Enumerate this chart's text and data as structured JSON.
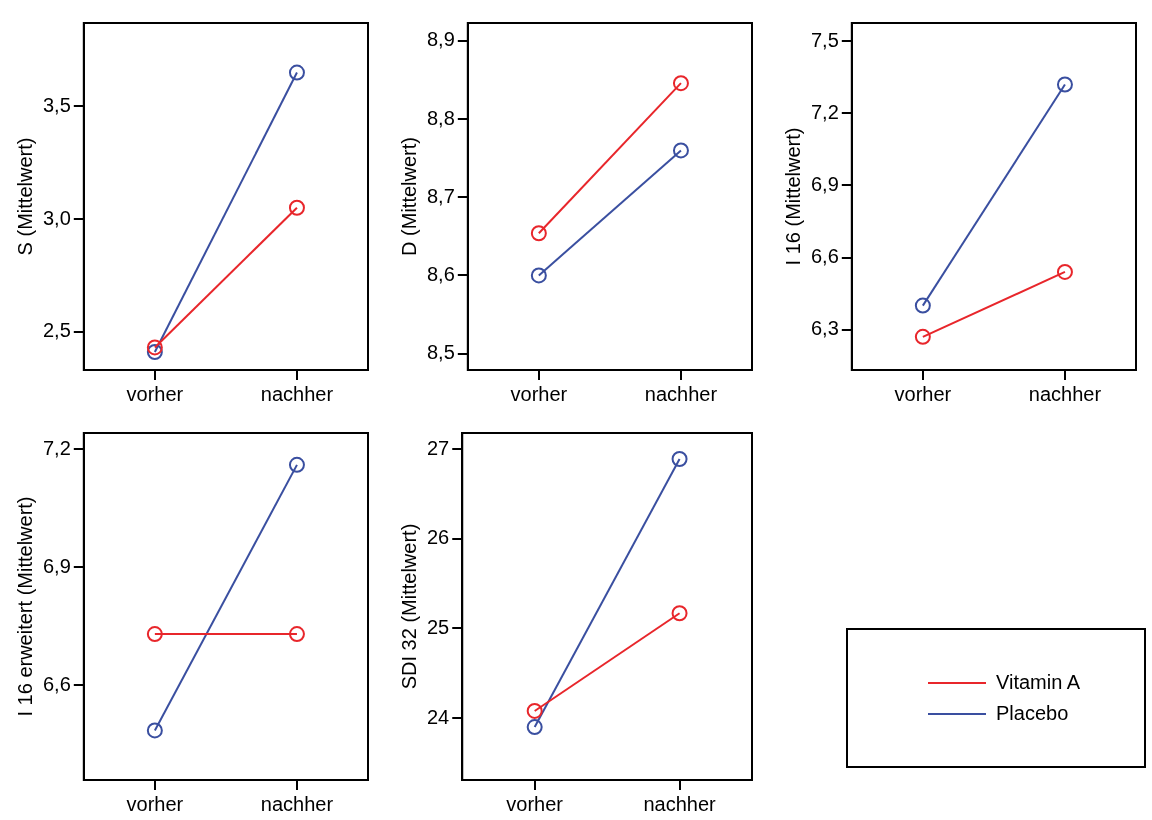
{
  "chart_data": [
    {
      "type": "line",
      "ylabel": "S (Mittelwert)",
      "categories": [
        "vorher",
        "nachher"
      ],
      "ylim": [
        2.33,
        3.87
      ],
      "yticks": [
        {
          "value": 2.5,
          "label": "2,5"
        },
        {
          "value": 3.0,
          "label": "3,0"
        },
        {
          "value": 3.5,
          "label": "3,5"
        }
      ],
      "grid": false,
      "marker": "circle",
      "legend": "bottom right",
      "series": [
        {
          "name": "Vitamin A",
          "color": "#e8262b",
          "values": [
            2.43,
            3.05
          ]
        },
        {
          "name": "Placebo",
          "color": "#3a4fa0",
          "values": [
            2.41,
            3.65
          ]
        }
      ]
    },
    {
      "type": "line",
      "ylabel": "D (Mittelwert)",
      "categories": [
        "vorher",
        "nachher"
      ],
      "ylim": [
        8.479,
        8.923
      ],
      "yticks": [
        {
          "value": 8.5,
          "label": "8,5"
        },
        {
          "value": 8.6,
          "label": "8,6"
        },
        {
          "value": 8.7,
          "label": "8,7"
        },
        {
          "value": 8.8,
          "label": "8,8"
        },
        {
          "value": 8.9,
          "label": "8,9"
        }
      ],
      "grid": false,
      "marker": "circle",
      "series": [
        {
          "color": "#e8262b",
          "values": [
            8.654,
            8.846
          ]
        },
        {
          "color": "#3a4fa0",
          "values": [
            8.6,
            8.76
          ]
        }
      ]
    },
    {
      "type": "line",
      "ylabel": "I 16 (Mittelwert)",
      "categories": [
        "vorher",
        "nachher"
      ],
      "ylim": [
        6.132,
        7.576
      ],
      "yticks": [
        {
          "value": 6.3,
          "label": "6,3"
        },
        {
          "value": 6.6,
          "label": "6,6"
        },
        {
          "value": 6.9,
          "label": "6,9"
        },
        {
          "value": 7.2,
          "label": "7,2"
        },
        {
          "value": 7.5,
          "label": "7,5"
        }
      ],
      "grid": false,
      "marker": "circle",
      "series": [
        {
          "color": "#e8262b",
          "values": [
            6.27,
            6.54
          ]
        },
        {
          "color": "#3a4fa0",
          "values": [
            6.4,
            7.32
          ]
        }
      ]
    },
    {
      "type": "line",
      "ylabel": "I 16 erweitert (Mittelwert)",
      "categories": [
        "vorher",
        "nachher"
      ],
      "ylim": [
        6.359,
        7.241
      ],
      "yticks": [
        {
          "value": 6.6,
          "label": "6,6"
        },
        {
          "value": 6.9,
          "label": "6,9"
        },
        {
          "value": 7.2,
          "label": "7,2"
        }
      ],
      "grid": false,
      "marker": "circle",
      "series": [
        {
          "color": "#e8262b",
          "values": [
            6.73,
            6.73
          ]
        },
        {
          "color": "#3a4fa0",
          "values": [
            6.485,
            7.16
          ]
        }
      ]
    },
    {
      "type": "line",
      "ylabel": "SDI 32 (Mittelwert)",
      "categories": [
        "vorher",
        "nachher"
      ],
      "ylim": [
        23.31,
        27.18
      ],
      "yticks": [
        24,
        25,
        26,
        27
      ],
      "grid": false,
      "marker": "circle",
      "series": [
        {
          "color": "#e8262b",
          "values": [
            24.08,
            25.17
          ]
        },
        {
          "color": "#3a4fa0",
          "values": [
            23.9,
            26.89
          ]
        }
      ]
    }
  ]
}
